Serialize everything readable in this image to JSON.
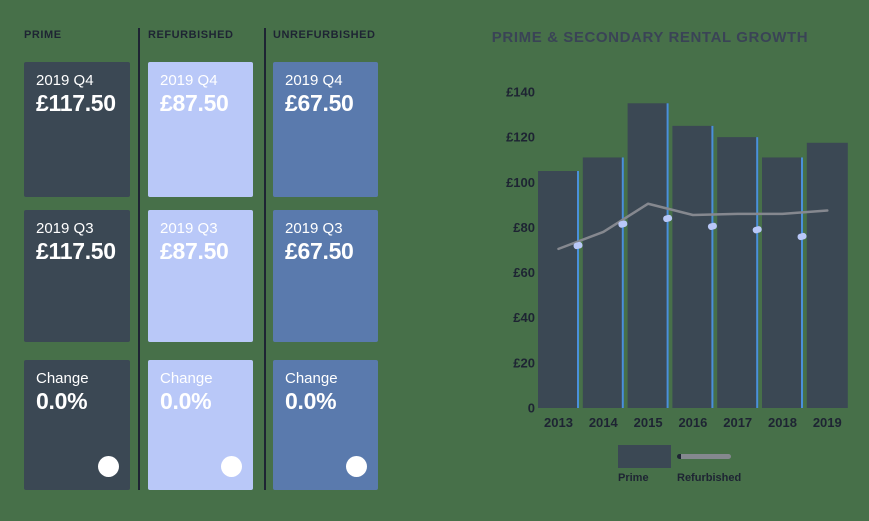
{
  "panel": {
    "columns": [
      {
        "label": "PRIME",
        "cards": [
          {
            "period": "2019 Q4",
            "value": "£117.50"
          },
          {
            "period": "2019 Q3",
            "value": "£117.50"
          },
          {
            "label": "Change",
            "value": "0.0%"
          }
        ]
      },
      {
        "label": "REFURBISHED",
        "cards": [
          {
            "period": "2019 Q4",
            "value": "£87.50"
          },
          {
            "period": "2019 Q3",
            "value": "£87.50"
          },
          {
            "label": "Change",
            "value": "0.0%"
          }
        ]
      },
      {
        "label": "UNREFURBISHED",
        "cards": [
          {
            "period": "2019 Q4",
            "value": "£67.50"
          },
          {
            "period": "2019 Q3",
            "value": "£67.50"
          },
          {
            "label": "Change",
            "value": "0.0%"
          }
        ]
      }
    ]
  },
  "chart_data": {
    "type": "bar",
    "title": "PRIME & SECONDARY RENTAL GROWTH",
    "categories": [
      "2013",
      "2014",
      "2015",
      "2016",
      "2017",
      "2018",
      "2019"
    ],
    "series": [
      {
        "name": "Prime",
        "type": "bar",
        "values": [
          105,
          111,
          135,
          125,
          120,
          111,
          117.5
        ]
      },
      {
        "name": "Refurbished",
        "type": "line",
        "values": [
          70.5,
          78,
          90.5,
          85.5,
          86,
          86,
          87.5
        ]
      }
    ],
    "markers": {
      "name": "between-bar-markers",
      "values": [
        72,
        81.5,
        84,
        80.5,
        79,
        76
      ]
    },
    "xlabel": "",
    "ylabel": "",
    "ylim": [
      0,
      140
    ],
    "yticks": {
      "values": [
        0,
        20,
        40,
        60,
        80,
        100,
        120,
        140
      ],
      "labels": [
        "0",
        "£20",
        "£40",
        "£60",
        "£80",
        "£100",
        "£120",
        "£140"
      ]
    },
    "grid": false,
    "legend_position": "bottom",
    "legend": [
      "Prime",
      "Refurbished"
    ]
  },
  "colors": {
    "background": "#477049",
    "dark": "#3B4854",
    "periwinkle": "#B9C8F8",
    "mid_blue": "#5A7AAD",
    "navy": "#1E2433",
    "accent_blue": "#4A90DB",
    "line_gray": "#85888F",
    "title": "#3A4356"
  }
}
